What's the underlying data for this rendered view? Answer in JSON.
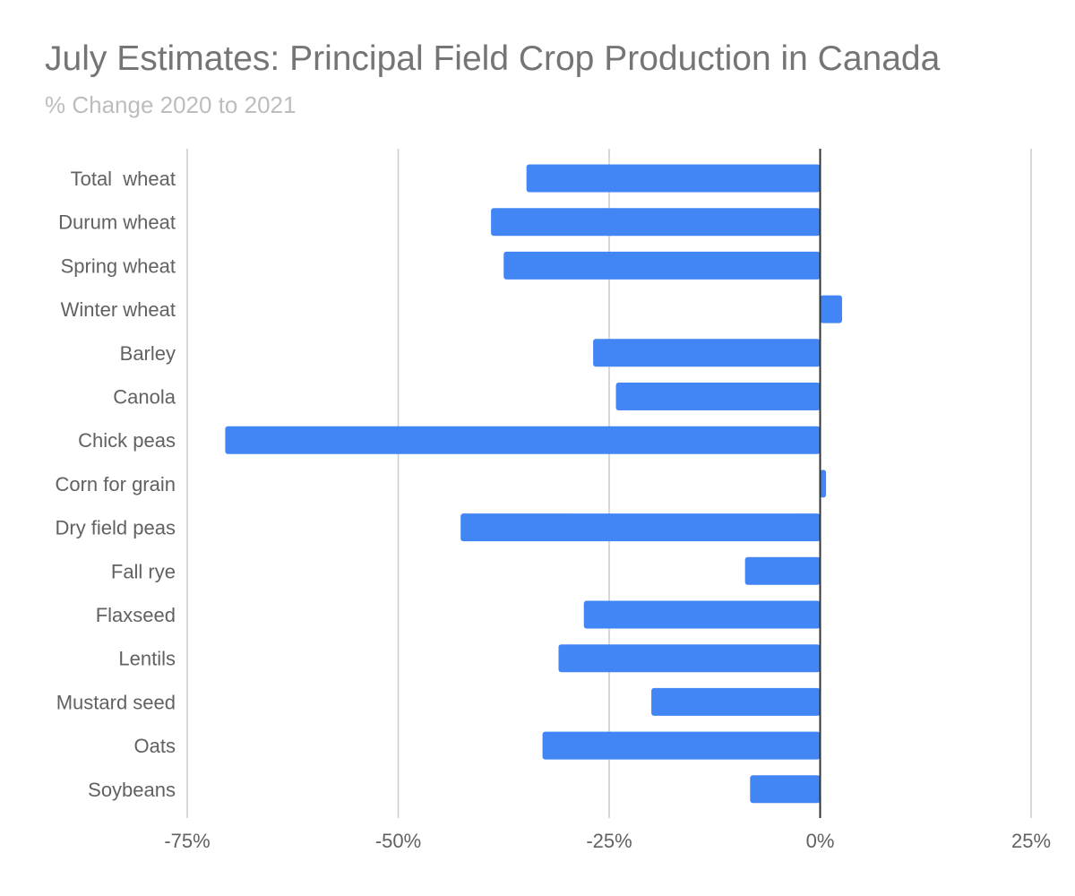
{
  "chart_data": {
    "type": "bar",
    "orientation": "horizontal",
    "title": "July Estimates: Principal Field Crop Production in Canada",
    "subtitle": "% Change 2020 to 2021",
    "xlabel": "",
    "ylabel": "",
    "xlim": [
      -75,
      25
    ],
    "grid": true,
    "legend": "none",
    "ticks": [
      {
        "value": -75,
        "label": "-75%"
      },
      {
        "value": -50,
        "label": "-50%"
      },
      {
        "value": -25,
        "label": "-25%"
      },
      {
        "value": 0,
        "label": "0%"
      },
      {
        "value": 25,
        "label": "25%"
      }
    ],
    "categories": [
      "Total  wheat",
      "Durum wheat",
      "Spring wheat",
      "Winter wheat",
      "Barley",
      "Canola",
      "Chick peas",
      "Corn for grain",
      "Dry field peas",
      "Fall rye",
      "Flaxseed",
      "Lentils",
      "Mustard seed",
      "Oats",
      "Soybeans"
    ],
    "values": [
      -34.8,
      -39.0,
      -37.5,
      2.6,
      -26.9,
      -24.2,
      -70.5,
      0.7,
      -42.6,
      -8.9,
      -28.0,
      -31.0,
      -20.0,
      -32.9,
      -8.3
    ],
    "bar_color": "#4285f4",
    "grid_color": "#cccccc",
    "zero_line_color": "#333333"
  }
}
